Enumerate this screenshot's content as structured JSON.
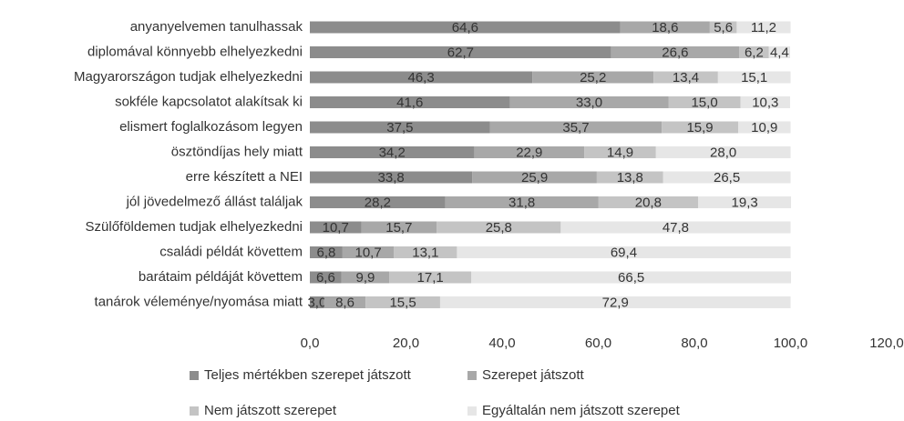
{
  "chart_data": {
    "type": "bar",
    "orientation": "horizontal",
    "stacked": true,
    "categories": [
      "anyanyelvemen tanulhassak",
      "diplomával könnyebb elhelyezkedni",
      "Magyarországon tudjak elhelyezkedni",
      "sokféle kapcsolatot alakítsak ki",
      "elismert foglalkozásom legyen",
      "ösztöndíjas hely miatt",
      "erre készített a NEI",
      "jól jövedelmező állást találjak",
      "Szülőföldemen tudjak elhelyezkedni",
      "családi példát követtem",
      "barátaim példáját követtem",
      "tanárok véleménye/nyomása miatt"
    ],
    "series": [
      {
        "name": "Teljes mértékben szerepet játszott",
        "color": "#8c8c8c",
        "values": [
          64.6,
          62.7,
          46.3,
          41.6,
          37.5,
          34.2,
          33.8,
          28.2,
          10.7,
          6.8,
          6.6,
          3.0
        ],
        "value_labels": [
          "64,6",
          "62,7",
          "46,3",
          "41,6",
          "37,5",
          "34,2",
          "33,8",
          "28,2",
          "10,7",
          "6,8",
          "6,6",
          "3,0"
        ]
      },
      {
        "name": "Szerepet játszott",
        "color": "#a8a8a8",
        "values": [
          18.6,
          26.6,
          25.2,
          33.0,
          35.7,
          22.9,
          25.9,
          31.8,
          15.7,
          10.7,
          9.9,
          8.6
        ],
        "value_labels": [
          "18,6",
          "26,6",
          "25,2",
          "33,0",
          "35,7",
          "22,9",
          "25,9",
          "31,8",
          "15,7",
          "10,7",
          "9,9",
          "8,6"
        ]
      },
      {
        "name": "Nem játszott szerepet",
        "color": "#c4c4c4",
        "values": [
          5.6,
          6.2,
          13.4,
          15.0,
          15.9,
          14.9,
          13.8,
          20.8,
          25.8,
          13.1,
          17.1,
          15.5
        ],
        "value_labels": [
          "5,6",
          "6,2",
          "13,4",
          "15,0",
          "15,9",
          "14,9",
          "13,8",
          "20,8",
          "25,8",
          "13,1",
          "17,1",
          "15,5"
        ]
      },
      {
        "name": "Egyáltalán nem játszott szerepet",
        "color": "#e6e6e6",
        "values": [
          11.2,
          4.4,
          15.1,
          10.3,
          10.9,
          28.0,
          26.5,
          19.3,
          47.8,
          69.4,
          66.5,
          72.9
        ],
        "value_labels": [
          "11,2",
          "4,4",
          "15,1",
          "10,3",
          "10,9",
          "28,0",
          "26,5",
          "19,3",
          "47,8",
          "69,4",
          "66,5",
          "72,9"
        ]
      }
    ],
    "xlim": [
      0,
      120
    ],
    "xticks": [
      {
        "value": 0,
        "label": "0,0"
      },
      {
        "value": 20,
        "label": "20,0"
      },
      {
        "value": 40,
        "label": "40,0"
      },
      {
        "value": 60,
        "label": "60,0"
      },
      {
        "value": 80,
        "label": "80,0"
      },
      {
        "value": 100,
        "label": "100,0"
      },
      {
        "value": 120,
        "label": "120,0"
      }
    ],
    "grid": false,
    "legend": "bottom"
  }
}
